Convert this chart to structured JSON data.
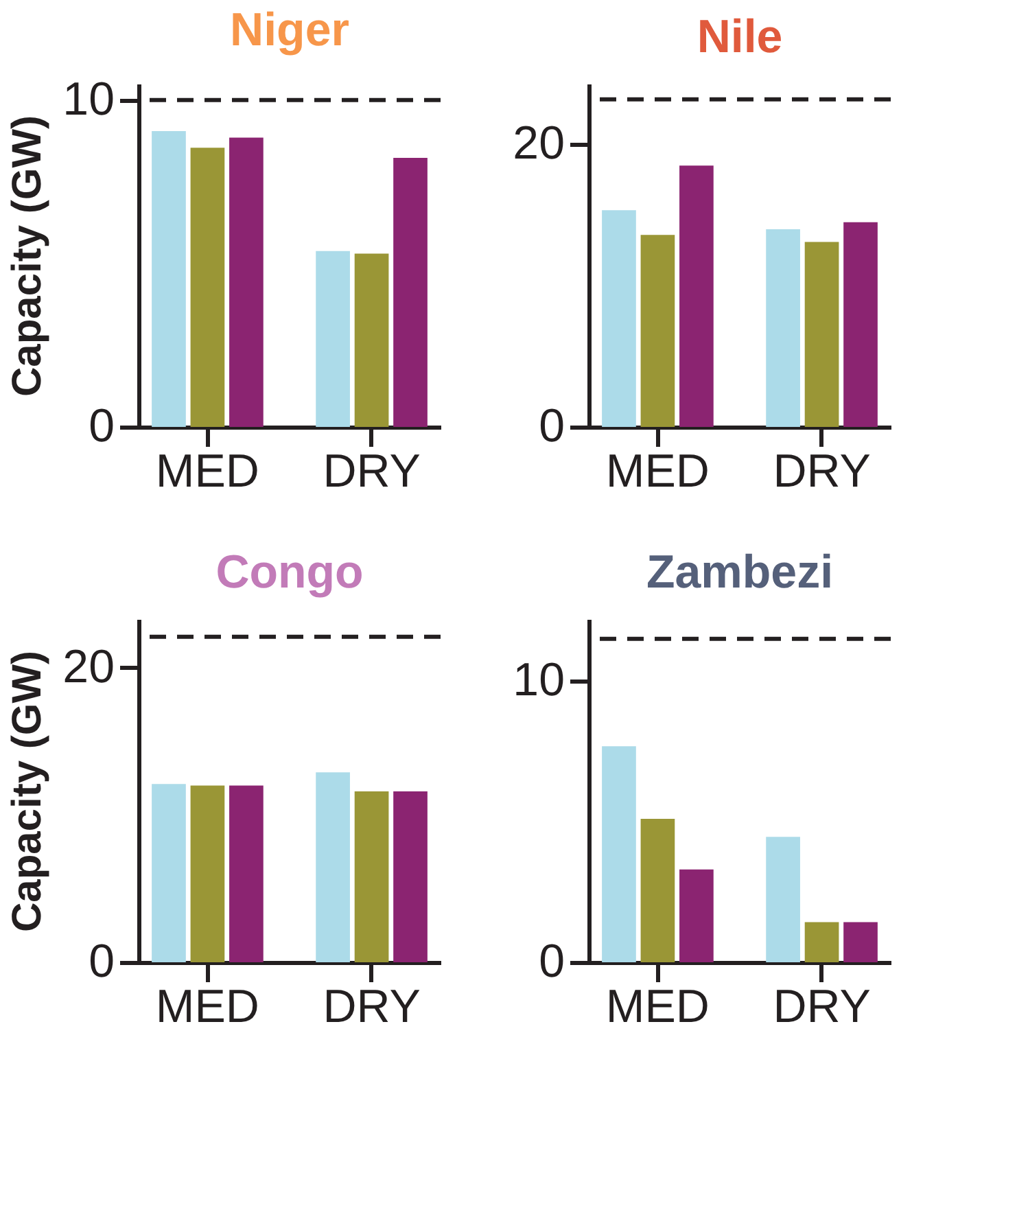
{
  "chart_data": [
    {
      "type": "bar",
      "title": "Niger",
      "ylabel": "Capacity (GW)",
      "categories": [
        "MED",
        "DRY"
      ],
      "ylim": [
        0,
        10.5
      ],
      "yticks": [
        0,
        10
      ],
      "grid": false,
      "legend": false,
      "series": [
        {
          "color": "#acdbe9",
          "values": [
            9.05,
            5.38
          ]
        },
        {
          "color": "#9a9636",
          "values": [
            8.54,
            5.3
          ]
        },
        {
          "color": "#8b2471",
          "values": [
            8.85,
            8.23
          ]
        }
      ],
      "ref_lines": [
        {
          "axis": "y",
          "value": 10,
          "line_style": "dashed",
          "color": "#231f20"
        }
      ]
    },
    {
      "type": "bar",
      "title": "Nile",
      "categories": [
        "MED",
        "DRY"
      ],
      "ylim": [
        0,
        24.3
      ],
      "yticks": [
        0,
        20
      ],
      "grid": false,
      "legend": false,
      "series": [
        {
          "color": "#acdbe9",
          "values": [
            15.35,
            14.0
          ]
        },
        {
          "color": "#9a9636",
          "values": [
            13.6,
            13.1
          ]
        },
        {
          "color": "#8b2471",
          "values": [
            18.5,
            14.5
          ]
        }
      ],
      "ref_lines": [
        {
          "axis": "y",
          "value": 23.2,
          "line_style": "dashed",
          "color": "#231f20"
        }
      ]
    },
    {
      "type": "bar",
      "title": "Congo",
      "ylabel": "Capacity (GW)",
      "categories": [
        "MED",
        "DRY"
      ],
      "ylim": [
        0,
        23.3
      ],
      "yticks": [
        0,
        20
      ],
      "grid": false,
      "legend": false,
      "series": [
        {
          "color": "#acdbe9",
          "values": [
            12.1,
            12.9
          ]
        },
        {
          "color": "#9a9636",
          "values": [
            12.0,
            11.6
          ]
        },
        {
          "color": "#8b2471",
          "values": [
            12.0,
            11.6
          ]
        }
      ],
      "ref_lines": [
        {
          "axis": "y",
          "value": 22.1,
          "line_style": "dashed",
          "color": "#231f20"
        }
      ]
    },
    {
      "type": "bar",
      "title": "Zambezi",
      "categories": [
        "MED",
        "DRY"
      ],
      "ylim": [
        0,
        12.2
      ],
      "yticks": [
        0,
        10
      ],
      "grid": false,
      "legend": false,
      "series": [
        {
          "color": "#acdbe9",
          "values": [
            7.68,
            4.46
          ]
        },
        {
          "color": "#9a9636",
          "values": [
            5.1,
            1.43
          ]
        },
        {
          "color": "#8b2471",
          "values": [
            3.3,
            1.43
          ]
        }
      ],
      "ref_lines": [
        {
          "axis": "y",
          "value": 11.5,
          "line_style": "dashed",
          "color": "#231f20"
        }
      ]
    }
  ]
}
